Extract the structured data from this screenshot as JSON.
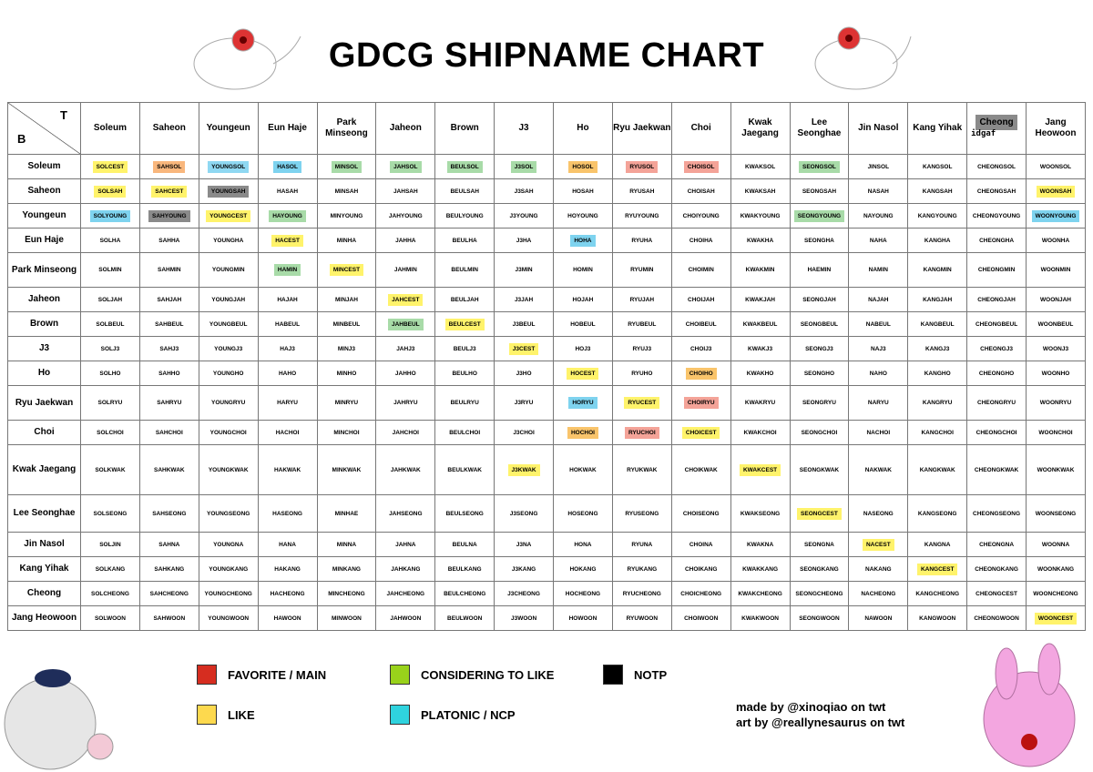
{
  "title": "GDCG SHIPNAME CHART",
  "corner": {
    "top": "T",
    "bottom": "B"
  },
  "columns": [
    "Soleum",
    "Saheon",
    "Youngeun",
    "Eun Haje",
    "Park Minseong",
    "Jaheon",
    "Brown",
    "J3",
    "Ho",
    "Ryu Jaekwan",
    "Choi",
    "Kwak Jaegang",
    "Lee Seonghae",
    "Jin Nasol",
    "Kang Yihak",
    {
      "text": "Cheong",
      "color": "#8a8a8a",
      "note": "idgaf"
    },
    "Jang Heowoon"
  ],
  "rows": [
    {
      "name": "Soleum",
      "cells": [
        {
          "text": "SOLCEST",
          "color": "#fff36b"
        },
        {
          "text": "SAHSOL",
          "color": "#f9b77d"
        },
        {
          "text": "YOUNGSOL",
          "color": "#8fd8f2"
        },
        {
          "text": "HASOL",
          "color": "#7ed3ef"
        },
        {
          "text": "MINSOL",
          "color": "#a8dba8"
        },
        {
          "text": "JAHSOL",
          "color": "#a8dba8"
        },
        {
          "text": "BEULSOL",
          "color": "#a8dba8"
        },
        {
          "text": "J3SOL",
          "color": "#a8dba8"
        },
        {
          "text": "HOSOL",
          "color": "#f9c46b"
        },
        {
          "text": "RYUSOL",
          "color": "#f4a398"
        },
        {
          "text": "CHOISOL",
          "color": "#f4a398"
        },
        "KWAKSOL",
        {
          "text": "SEONGSOL",
          "color": "#a8dba8"
        },
        "JINSOL",
        "KANGSOL",
        "CHEONGSOL",
        "WOONSOL"
      ]
    },
    {
      "name": "Saheon",
      "cells": [
        {
          "text": "SOLSAH",
          "color": "#fff36b"
        },
        {
          "text": "SAHCEST",
          "color": "#fff36b"
        },
        {
          "text": "YOUNGSAH",
          "color": "#8a8a8a"
        },
        "HASAH",
        "MINSAH",
        "JAHSAH",
        "BEULSAH",
        "J3SAH",
        "HOSAH",
        "RYUSAH",
        "CHOISAH",
        "KWAKSAH",
        "SEONGSAH",
        "NASAH",
        "KANGSAH",
        "CHEONGSAH",
        {
          "text": "WOONSAH",
          "color": "#fff36b"
        }
      ]
    },
    {
      "name": "Youngeun",
      "cells": [
        {
          "text": "SOLYOUNG",
          "color": "#7ed3ef"
        },
        {
          "text": "SAHYOUNG",
          "color": "#8a8a8a"
        },
        {
          "text": "YOUNGCEST",
          "color": "#fff36b"
        },
        {
          "text": "HAYOUNG",
          "color": "#a8dba8"
        },
        "MINYOUNG",
        "JAHYOUNG",
        "BEULYOUNG",
        "J3YOUNG",
        "HOYOUNG",
        "RYUYOUNG",
        "CHOIYOUNG",
        "KWAKYOUNG",
        {
          "text": "SEONGYOUNG",
          "color": "#a8dba8"
        },
        "NAYOUNG",
        "KANGYOUNG",
        "CHEONGYOUNG",
        {
          "text": "WOONYOUNG",
          "color": "#7ed3ef"
        }
      ]
    },
    {
      "name": "Eun Haje",
      "cells": [
        "SOLHA",
        "SAHHA",
        "YOUNGHA",
        {
          "text": "HACEST",
          "color": "#fff36b"
        },
        "MINHA",
        "JAHHA",
        "BEULHA",
        "J3HA",
        {
          "text": "HOHA",
          "color": "#7ed3ef"
        },
        "RYUHA",
        "CHOIHA",
        "KWAKHA",
        "SEONGHA",
        "NAHA",
        "KANGHA",
        "CHEONGHA",
        "WOONHA"
      ]
    },
    {
      "name": "Park Minseong",
      "cells": [
        "SOLMIN",
        "SAHMIN",
        "YOUNGMIN",
        {
          "text": "HAMIN",
          "color": "#a8dba8"
        },
        {
          "text": "MINCEST",
          "color": "#fff36b"
        },
        "JAHMIN",
        "BEULMIN",
        "J3MIN",
        "HOMIN",
        "RYUMIN",
        "CHOIMIN",
        "KWAKMIN",
        "HAEMIN",
        "NAMIN",
        "KANGMIN",
        "CHEONGMIN",
        "WOONMIN"
      ]
    },
    {
      "name": "Jaheon",
      "cells": [
        "SOLJAH",
        "SAHJAH",
        "YOUNGJAH",
        "HAJAH",
        "MINJAH",
        {
          "text": "JAHCEST",
          "color": "#fff36b"
        },
        "BEULJAH",
        "J3JAH",
        "HOJAH",
        "RYUJAH",
        "CHOIJAH",
        "KWAKJAH",
        "SEONGJAH",
        "NAJAH",
        "KANGJAH",
        "CHEONGJAH",
        "WOONJAH"
      ]
    },
    {
      "name": "Brown",
      "cells": [
        "SOLBEUL",
        "SAHBEUL",
        "YOUNGBEUL",
        "HABEUL",
        "MINBEUL",
        {
          "text": "JAHBEUL",
          "color": "#a8dba8"
        },
        {
          "text": "BEULCEST",
          "color": "#fff36b"
        },
        "J3BEUL",
        "HOBEUL",
        "RYUBEUL",
        "CHOIBEUL",
        "KWAKBEUL",
        "SEONGBEUL",
        "NABEUL",
        "KANGBEUL",
        "CHEONGBEUL",
        "WOONBEUL"
      ]
    },
    {
      "name": "J3",
      "cells": [
        "SOLJ3",
        "SAHJ3",
        "YOUNGJ3",
        "HAJ3",
        "MINJ3",
        "JAHJ3",
        "BEULJ3",
        {
          "text": "J3CEST",
          "color": "#fff36b"
        },
        "HOJ3",
        "RYUJ3",
        "CHOIJ3",
        "KWAKJ3",
        "SEONGJ3",
        "NAJ3",
        "KANGJ3",
        "CHEONGJ3",
        "WOONJ3"
      ]
    },
    {
      "name": "Ho",
      "cells": [
        "SOLHO",
        "SAHHO",
        "YOUNGHO",
        "HAHO",
        "MINHO",
        "JAHHO",
        "BEULHO",
        "J3HO",
        {
          "text": "HOCEST",
          "color": "#fff36b"
        },
        "RYUHO",
        {
          "text": "CHOIHO",
          "color": "#f9c46b"
        },
        "KWAKHO",
        "SEONGHO",
        "NAHO",
        "KANGHO",
        "CHEONGHO",
        "WOONHO"
      ]
    },
    {
      "name": "Ryu Jaekwan",
      "cells": [
        "SOLRYU",
        "SAHRYU",
        "YOUNGRYU",
        "HARYU",
        "MINRYU",
        "JAHRYU",
        "BEULRYU",
        "J3RYU",
        {
          "text": "HORYU",
          "color": "#7ed3ef"
        },
        {
          "text": "RYUCEST",
          "color": "#fff36b"
        },
        {
          "text": "CHOIRYU",
          "color": "#f4a398"
        },
        "KWAKRYU",
        "SEONGRYU",
        "NARYU",
        "KANGRYU",
        "CHEONGRYU",
        "WOONRYU"
      ]
    },
    {
      "name": "Choi",
      "cells": [
        "SOLCHOI",
        "SAHCHOI",
        "YOUNGCHOI",
        "HACHOI",
        "MINCHOI",
        "JAHCHOI",
        "BEULCHOI",
        "J3CHOI",
        {
          "text": "HOCHOI",
          "color": "#f9c46b"
        },
        {
          "text": "RYUCHOI",
          "color": "#f4a398"
        },
        {
          "text": "CHOICEST",
          "color": "#fff36b"
        },
        "KWAKCHOI",
        "SEONGCHOI",
        "NACHOI",
        "KANGCHOI",
        "CHEONGCHOI",
        "WOONCHOI"
      ]
    },
    {
      "name": "Kwak Jaegang",
      "cells": [
        "SOLKWAK",
        "SAHKWAK",
        "YOUNGKWAK",
        "HAKWAK",
        "MINKWAK",
        "JAHKWAK",
        "BEULKWAK",
        {
          "text": "J3KWAK",
          "color": "#fff36b"
        },
        "HOKWAK",
        "RYUKWAK",
        "CHOIKWAK",
        {
          "text": "KWAKCEST",
          "color": "#fff36b"
        },
        "SEONGKWAK",
        "NAKWAK",
        "KANGKWAK",
        "CHEONGKWAK",
        "WOONKWAK"
      ]
    },
    {
      "name": "Lee Seonghae",
      "cells": [
        "SOLSEONG",
        "SAHSEONG",
        "YOUNGSEONG",
        "HASEONG",
        "MINHAE",
        "JAHSEONG",
        "BEULSEONG",
        "J3SEONG",
        "HOSEONG",
        "RYUSEONG",
        "CHOISEONG",
        "KWAKSEONG",
        {
          "text": "SEONGCEST",
          "color": "#fff36b"
        },
        "NASEONG",
        "KANGSEONG",
        "CHEONGSEONG",
        "WOONSEONG"
      ]
    },
    {
      "name": "Jin Nasol",
      "cells": [
        "SOLJIN",
        "SAHNA",
        "YOUNGNA",
        "HANA",
        "MINNA",
        "JAHNA",
        "BEULNA",
        "J3NA",
        "HONA",
        "RYUNA",
        "CHOINA",
        "KWAKNA",
        "SEONGNA",
        {
          "text": "NACEST",
          "color": "#fff36b"
        },
        "KANGNA",
        "CHEONGNA",
        "WOONNA"
      ]
    },
    {
      "name": "Kang Yihak",
      "cells": [
        "SOLKANG",
        "SAHKANG",
        "YOUNGKANG",
        "HAKANG",
        "MINKANG",
        "JAHKANG",
        "BEULKANG",
        "J3KANG",
        "HOKANG",
        "RYUKANG",
        "CHOIKANG",
        "KWAKKANG",
        "SEONGKANG",
        "NAKANG",
        {
          "text": "KANGCEST",
          "color": "#fff36b"
        },
        "CHEONGKANG",
        "WOONKANG"
      ]
    },
    {
      "name": "Cheong",
      "cells": [
        "SOLCHEONG",
        "SAHCHEONG",
        "YOUNGCHEONG",
        "HACHEONG",
        "MINCHEONG",
        "JAHCHEONG",
        "BEULCHEONG",
        "J3CHEONG",
        "HOCHEONG",
        "RYUCHEONG",
        "CHOICHEONG",
        "KWAKCHEONG",
        "SEONGCHEONG",
        "NACHEONG",
        "KANGCHEONG",
        "CHEONGCEST",
        "WOONCHEONG"
      ]
    },
    {
      "name": "Jang Heowoon",
      "cells": [
        "SOLWOON",
        "SAHWOON",
        "YOUNGWOON",
        "HAWOON",
        "MINWOON",
        "JAHWOON",
        "BEULWOON",
        "J3WOON",
        "HOWOON",
        "RYUWOON",
        "CHOIWOON",
        "KWAKWOON",
        "SEONGWOON",
        "NAWOON",
        "KANGWOON",
        "CHEONGWOON",
        {
          "text": "WOONCEST",
          "color": "#fff36b"
        }
      ]
    }
  ],
  "legend": [
    {
      "label": "FAVORITE / MAIN",
      "color": "#d62d20"
    },
    {
      "label": "LIKE",
      "color": "#fdd94e"
    },
    {
      "label": "CONSIDERING TO LIKE",
      "color": "#99d21b"
    },
    {
      "label": "PLATONIC / NCP",
      "color": "#2fd3de"
    },
    {
      "label": "NOTP",
      "color": "#000000"
    }
  ],
  "credits": [
    "made by @xinoqiao on twt",
    "art by @reallynesaurus on twt"
  ]
}
